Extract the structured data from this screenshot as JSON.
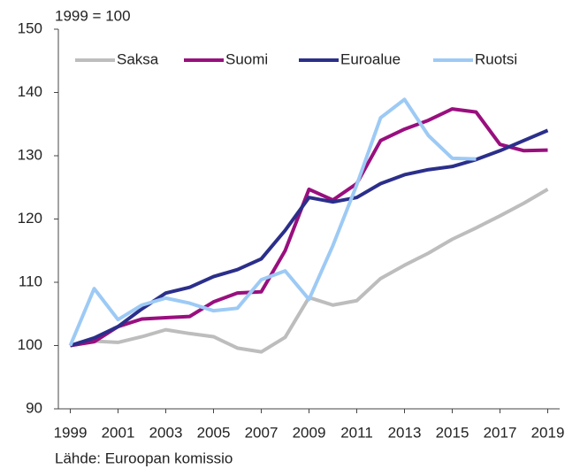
{
  "chart_data": {
    "type": "line",
    "annotation": "1999 = 100",
    "source": "Lähde: Euroopan komissio",
    "x": [
      1999,
      2000,
      2001,
      2002,
      2003,
      2004,
      2005,
      2006,
      2007,
      2008,
      2009,
      2010,
      2011,
      2012,
      2013,
      2014,
      2015,
      2016,
      2017,
      2018,
      2019
    ],
    "series": [
      {
        "name": "Saksa",
        "color": "#bdbdbd",
        "values": [
          100,
          100.7,
          100.5,
          101.4,
          102.5,
          101.9,
          101.4,
          99.6,
          99.0,
          101.3,
          107.6,
          106.4,
          107.1,
          110.6,
          112.7,
          114.6,
          116.8,
          118.6,
          120.5,
          122.5,
          124.7
        ]
      },
      {
        "name": "Suomi",
        "color": "#990f7e",
        "values": [
          100,
          100.6,
          103,
          104.2,
          104.4,
          104.6,
          106.9,
          108.3,
          108.5,
          115,
          124.7,
          123,
          125.6,
          132.4,
          134.2,
          135.6,
          137.4,
          136.9,
          131.8,
          130.8,
          130.9
        ]
      },
      {
        "name": "Euroalue",
        "color": "#2b2f8a",
        "values": [
          100,
          101.2,
          103,
          105.8,
          108.3,
          109.2,
          110.9,
          112.0,
          113.7,
          118.2,
          123.4,
          122.7,
          123.4,
          125.6,
          127.0,
          127.8,
          128.3,
          129.4,
          130.8,
          132.4,
          134.0
        ]
      },
      {
        "name": "Ruotsi",
        "color": "#9dcaf5",
        "values": [
          100,
          109,
          104.1,
          106.4,
          107.5,
          106.7,
          105.5,
          105.9,
          110.4,
          111.8,
          107.3,
          115.8,
          125.4,
          136,
          138.9,
          133.2,
          129.6,
          129.5,
          null,
          null,
          null
        ]
      }
    ],
    "xlim": [
      1998.5,
      2019.5
    ],
    "xticks": [
      1999,
      2001,
      2003,
      2005,
      2007,
      2009,
      2011,
      2013,
      2015,
      2017,
      2019
    ],
    "ylim": [
      90,
      150
    ],
    "yticks": [
      90,
      100,
      110,
      120,
      130,
      140,
      150
    ],
    "grid": false,
    "legend": "top"
  }
}
